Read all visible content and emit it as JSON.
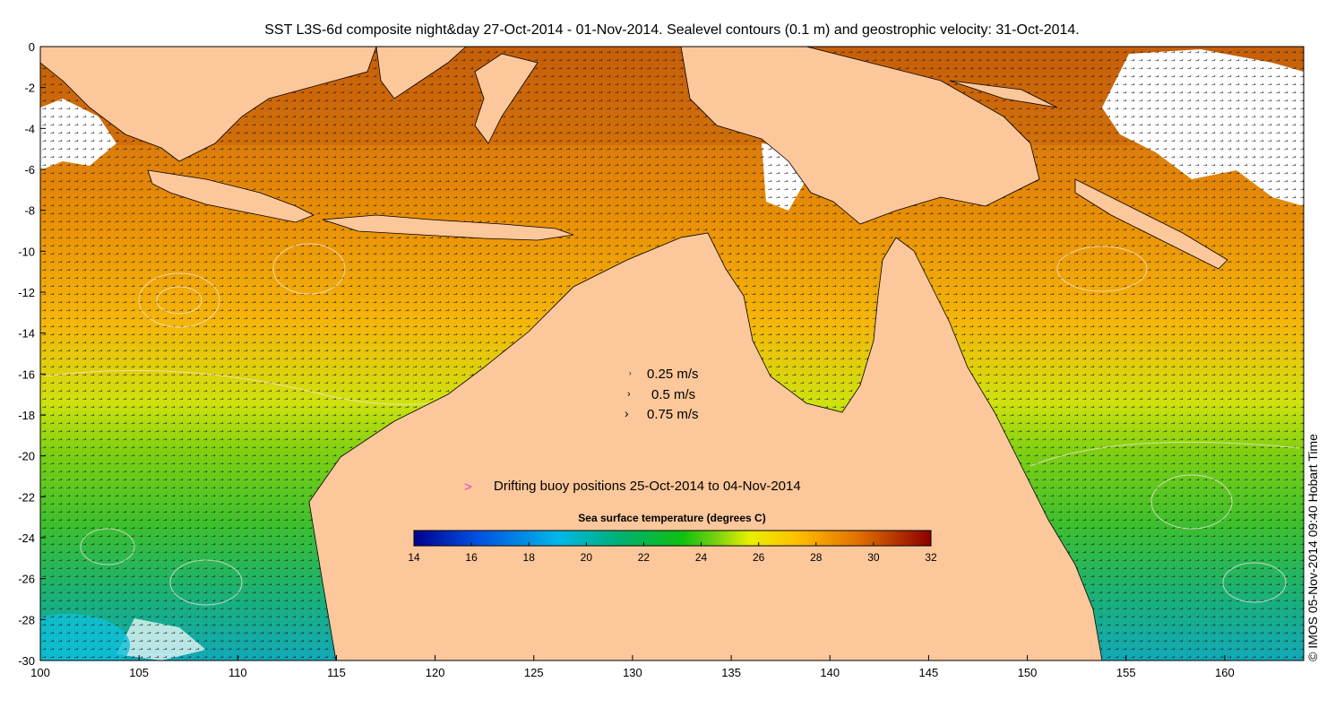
{
  "title": "SST L3S-6d composite night&day 27-Oct-2014 - 01-Nov-2014. Sealevel contours (0.1 m) and geostrophic velocity: 31-Oct-2014.",
  "credit": "© IMOS 05-Nov-2014 09:40 Hobart Time",
  "axes": {
    "x_ticks": [
      "100",
      "105",
      "110",
      "115",
      "120",
      "125",
      "130",
      "135",
      "140",
      "145",
      "150",
      "155",
      "160"
    ],
    "y_ticks": [
      "0",
      "-2",
      "-4",
      "-6",
      "-8",
      "-10",
      "-12",
      "-14",
      "-16",
      "-18",
      "-20",
      "-22",
      "-24",
      "-26",
      "-28",
      "-30"
    ],
    "xlim": [
      100,
      164
    ],
    "ylim": [
      -30,
      0
    ]
  },
  "velocity_legend": [
    {
      "label": "0.25 m/s"
    },
    {
      "label": "0.5 m/s"
    },
    {
      "label": "0.75 m/s"
    }
  ],
  "buoy_legend": {
    "marker": ">",
    "label": "Drifting buoy positions 25-Oct-2014 to 04-Nov-2014",
    "color": "#e040e0"
  },
  "colorbar": {
    "title": "Sea surface temperature (degrees C)",
    "ticks": [
      "14",
      "16",
      "18",
      "20",
      "22",
      "24",
      "26",
      "28",
      "30",
      "32"
    ],
    "range": [
      14,
      32
    ]
  },
  "colors": {
    "land": "#fcc79a",
    "cloud": "#ffffff",
    "contour": "#f5e6d8"
  }
}
